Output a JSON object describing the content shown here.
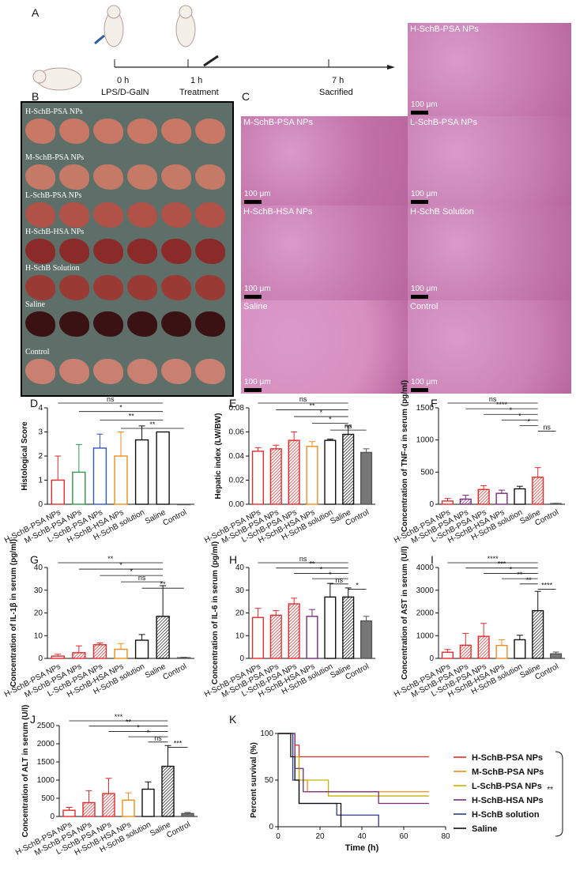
{
  "panel_letters": {
    "A": "A",
    "B": "B",
    "C": "C",
    "D": "D",
    "E": "E",
    "F": "F",
    "G": "G",
    "H": "H",
    "I": "I",
    "J": "J",
    "K": "K"
  },
  "timeline": {
    "t0": "0 h",
    "t0_label": "LPS/D-GalN",
    "t1": "1 h",
    "t1_label": "Treatment",
    "t7": "7 h",
    "t7_label": "Sacrified"
  },
  "liver_rows": [
    "H-SchB-PSA NPs",
    "M-SchB-PSA NPs",
    "L-SchB-PSA NPs",
    "H-SchB-HSA NPs",
    "H-SchB Solution",
    "Saline",
    "Control"
  ],
  "histology": {
    "scale": "100 μm",
    "panels": [
      "H-SchB-PSA NPs",
      "M-SchB-PSA NPs",
      "L-SchB-PSA NPs",
      "H-SchB-HSA NPs",
      "H-SchB Solution",
      "Saline",
      "Control"
    ]
  },
  "groups": [
    "H-SchB-PSA NPs",
    "M-SchB-PSA NPs",
    "L-SchB-PSA NPs",
    "H-SchB-HSA NPs",
    "H-SchB solution",
    "Saline",
    "Control"
  ],
  "colors": {
    "g1": "#e52b2b",
    "g2": "#2e9a4a",
    "g3": "#2e56c7",
    "g4": "#f08c1a",
    "g5": "#111111",
    "g6": "#111111",
    "g7": "#555555"
  },
  "chart_data": [
    {
      "id": "D",
      "type": "bar",
      "ylabel": "Histological Score",
      "yticks": [
        "0",
        "1",
        "2",
        "3",
        "4"
      ],
      "ylim": [
        0,
        4
      ],
      "values": [
        1,
        1.33,
        2.33,
        2,
        2.67,
        3,
        0
      ],
      "errors": [
        1,
        1.15,
        0.58,
        1,
        0.58,
        0,
        0
      ],
      "sig": [
        "ns",
        "*",
        "**",
        "**"
      ]
    },
    {
      "id": "E",
      "type": "bar",
      "ylabel": "Hepatic index (LW/BW)",
      "yticks": [
        "0.00",
        "0.02",
        "0.04",
        "0.06",
        "0.08"
      ],
      "ylim": [
        0,
        0.08
      ],
      "values": [
        0.044,
        0.046,
        0.053,
        0.048,
        0.053,
        0.058,
        0.043
      ],
      "errors": [
        0.003,
        0.003,
        0.007,
        0.004,
        0.001,
        0.007,
        0.003
      ],
      "sig": [
        "ns",
        "**",
        "*",
        "*",
        "ns"
      ]
    },
    {
      "id": "F",
      "type": "bar",
      "ylabel": "Concentration of TNF-α in serum (pg/ml)",
      "yticks": [
        "0",
        "500",
        "1000",
        "1500"
      ],
      "ylim": [
        0,
        1500
      ],
      "values": [
        50,
        80,
        230,
        170,
        240,
        420,
        10
      ],
      "errors": [
        40,
        60,
        60,
        50,
        40,
        150,
        5
      ],
      "sig": [
        "ns",
        "****",
        "*",
        "*",
        "*",
        "ns"
      ]
    },
    {
      "id": "G",
      "type": "bar",
      "ylabel": "Concentration of IL-1β in serum (pg/ml)",
      "yticks": [
        "0",
        "10",
        "20",
        "30",
        "40"
      ],
      "ylim": [
        0,
        40
      ],
      "values": [
        1,
        2.5,
        6,
        4,
        8,
        18.5,
        0.3
      ],
      "errors": [
        0.8,
        3,
        0.8,
        2.5,
        2.5,
        13.5,
        0.2
      ],
      "sig": [
        "**",
        "*",
        "*",
        "ns",
        "**"
      ]
    },
    {
      "id": "H",
      "type": "bar",
      "ylabel": "Concentration of IL-6 in serum (pg/ml)",
      "yticks": [
        "0",
        "10",
        "20",
        "30",
        "40"
      ],
      "ylim": [
        0,
        40
      ],
      "values": [
        18,
        19,
        24,
        18.5,
        27,
        27,
        16.5
      ],
      "errors": [
        4,
        2,
        2.5,
        3,
        6,
        4,
        2
      ],
      "sig": [
        "ns",
        "**",
        "*",
        "*",
        "ns",
        "*"
      ]
    },
    {
      "id": "I",
      "type": "bar",
      "ylabel": "Concentration of AST in serum (U/l)",
      "yticks": [
        "0",
        "1000",
        "2000",
        "3000",
        "4000"
      ],
      "ylim": [
        0,
        4000
      ],
      "values": [
        270,
        580,
        970,
        570,
        820,
        2100,
        200
      ],
      "errors": [
        120,
        520,
        570,
        250,
        200,
        850,
        80
      ],
      "sig": [
        "****",
        "***",
        "*",
        "**",
        "**",
        "****"
      ]
    },
    {
      "id": "J",
      "type": "bar",
      "ylabel": "Concentration of ALT in serum (U/l)",
      "yticks": [
        "0",
        "500",
        "1000",
        "1500",
        "2000",
        "2500"
      ],
      "ylim": [
        0,
        2500
      ],
      "values": [
        170,
        380,
        630,
        450,
        750,
        1380,
        80
      ],
      "errors": [
        80,
        330,
        420,
        200,
        200,
        570,
        30
      ],
      "sig": [
        "***",
        "**",
        "*",
        "*",
        "ns",
        "***"
      ]
    },
    {
      "id": "K",
      "type": "line",
      "xlabel": "Time (h)",
      "ylabel": "Percent survival (%)",
      "xticks": [
        "0",
        "20",
        "40",
        "60",
        "80"
      ],
      "yticks": [
        "0",
        "50",
        "100"
      ],
      "xlim": [
        0,
        80
      ],
      "ylim": [
        0,
        100
      ],
      "sig": "**",
      "series": [
        {
          "name": "H-SchB-PSA NPs",
          "color": "#e52b2b",
          "points": [
            [
              0,
              100
            ],
            [
              8,
              100
            ],
            [
              8,
              87.5
            ],
            [
              10,
              87.5
            ],
            [
              10,
              75
            ],
            [
              72,
              75
            ]
          ]
        },
        {
          "name": "M-SchB-PSA NPs",
          "color": "#f08c1a",
          "points": [
            [
              0,
              100
            ],
            [
              8,
              100
            ],
            [
              8,
              75
            ],
            [
              10,
              75
            ],
            [
              10,
              50
            ],
            [
              14,
              50
            ],
            [
              14,
              37.5
            ],
            [
              72,
              37.5
            ]
          ]
        },
        {
          "name": "L-SchB-PSA NPs",
          "color": "#c8b400",
          "points": [
            [
              0,
              100
            ],
            [
              7,
              100
            ],
            [
              7,
              75
            ],
            [
              10,
              75
            ],
            [
              10,
              50
            ],
            [
              24,
              50
            ],
            [
              24,
              33
            ],
            [
              72,
              33
            ]
          ]
        },
        {
          "name": "H-SchB-HSA NPs",
          "color": "#7a2a7a",
          "points": [
            [
              0,
              100
            ],
            [
              8,
              100
            ],
            [
              8,
              62.5
            ],
            [
              12,
              62.5
            ],
            [
              12,
              37.5
            ],
            [
              48,
              37.5
            ],
            [
              48,
              25
            ],
            [
              72,
              25
            ]
          ]
        },
        {
          "name": "H-SchB solution",
          "color": "#2a3a8a",
          "points": [
            [
              0,
              100
            ],
            [
              7,
              100
            ],
            [
              7,
              50
            ],
            [
              10,
              50
            ],
            [
              10,
              25
            ],
            [
              28,
              25
            ],
            [
              28,
              12.5
            ],
            [
              48,
              12.5
            ],
            [
              48,
              0
            ]
          ]
        },
        {
          "name": "Saline",
          "color": "#111111",
          "points": [
            [
              0,
              100
            ],
            [
              6,
              100
            ],
            [
              6,
              75
            ],
            [
              8,
              75
            ],
            [
              8,
              50
            ],
            [
              10,
              50
            ],
            [
              10,
              25
            ],
            [
              30,
              25
            ],
            [
              30,
              0
            ]
          ]
        }
      ]
    }
  ]
}
